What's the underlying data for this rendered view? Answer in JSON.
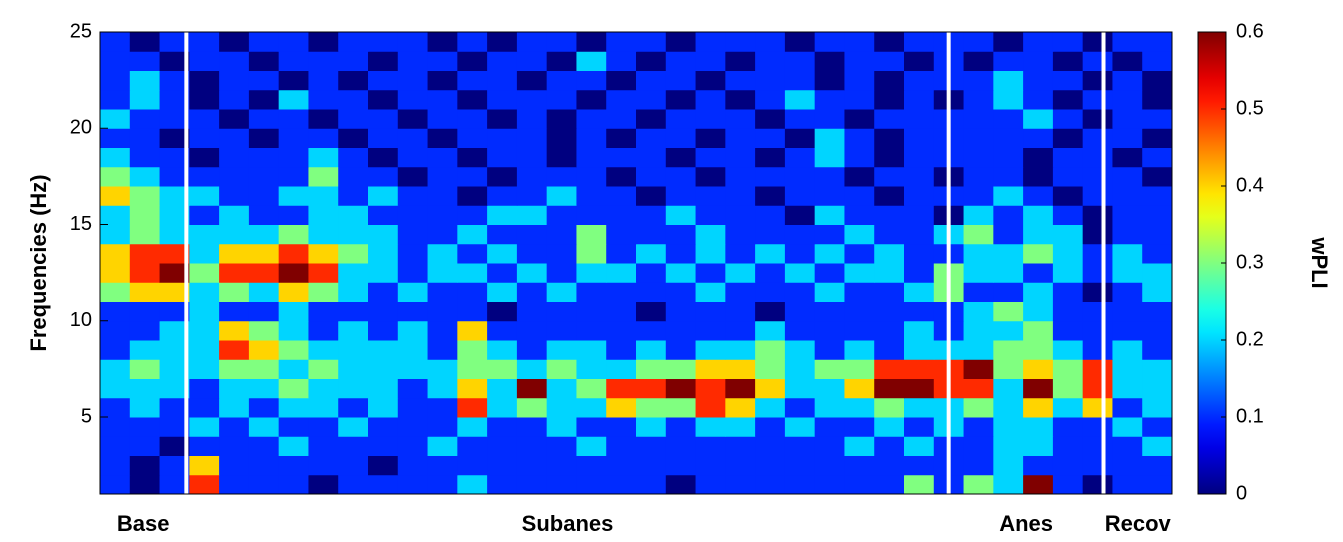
{
  "chart_data": {
    "type": "heatmap",
    "y_label": "Frequencies (Hz)",
    "ylim": [
      1,
      25
    ],
    "yticks": [
      5,
      10,
      15,
      20,
      25
    ],
    "colormap": "jet",
    "colorbar": {
      "label": "wPLI",
      "clim": [
        0,
        0.6
      ],
      "ticks": [
        0,
        0.1,
        0.2,
        0.3,
        0.4,
        0.5,
        0.6
      ]
    },
    "segments": [
      {
        "label": "Base",
        "start": 0
      },
      {
        "label": "Subanes",
        "start": 2.9
      },
      {
        "label": "Anes",
        "start": 28.5
      },
      {
        "label": "Recov",
        "start": 33.7
      }
    ],
    "boundary_color": "#ffffff",
    "values": [
      [
        0.1,
        0.0,
        0.1,
        0.5,
        0.1,
        0.1,
        0.1,
        0.0,
        0.1,
        0.1,
        0.1,
        0.1,
        0.2,
        0.1,
        0.1,
        0.1,
        0.1,
        0.1,
        0.1,
        0.0,
        0.1,
        0.1,
        0.1,
        0.1,
        0.1,
        0.1,
        0.1,
        0.3,
        0.1,
        0.3,
        0.2,
        0.6,
        0.1,
        0.0,
        0.1,
        0.1
      ],
      [
        0.1,
        0.0,
        0.1,
        0.4,
        0.1,
        0.1,
        0.1,
        0.1,
        0.1,
        0.0,
        0.1,
        0.1,
        0.1,
        0.1,
        0.1,
        0.1,
        0.1,
        0.1,
        0.1,
        0.1,
        0.1,
        0.1,
        0.1,
        0.1,
        0.1,
        0.1,
        0.1,
        0.1,
        0.1,
        0.1,
        0.2,
        0.1,
        0.1,
        0.1,
        0.1,
        0.1
      ],
      [
        0.1,
        0.1,
        0.0,
        0.1,
        0.1,
        0.1,
        0.2,
        0.1,
        0.1,
        0.1,
        0.1,
        0.2,
        0.1,
        0.1,
        0.1,
        0.1,
        0.2,
        0.1,
        0.1,
        0.1,
        0.1,
        0.1,
        0.1,
        0.1,
        0.1,
        0.2,
        0.1,
        0.2,
        0.1,
        0.1,
        0.2,
        0.2,
        0.1,
        0.1,
        0.1,
        0.2
      ],
      [
        0.1,
        0.1,
        0.1,
        0.2,
        0.1,
        0.2,
        0.1,
        0.1,
        0.2,
        0.1,
        0.1,
        0.1,
        0.2,
        0.1,
        0.1,
        0.2,
        0.1,
        0.1,
        0.2,
        0.1,
        0.2,
        0.2,
        0.1,
        0.2,
        0.1,
        0.1,
        0.2,
        0.1,
        0.2,
        0.1,
        0.2,
        0.2,
        0.1,
        0.1,
        0.2,
        0.1
      ],
      [
        0.1,
        0.2,
        0.1,
        0.1,
        0.2,
        0.1,
        0.2,
        0.2,
        0.1,
        0.2,
        0.1,
        0.1,
        0.5,
        0.2,
        0.3,
        0.2,
        0.2,
        0.4,
        0.3,
        0.3,
        0.5,
        0.4,
        0.2,
        0.1,
        0.2,
        0.2,
        0.3,
        0.2,
        0.2,
        0.3,
        0.2,
        0.4,
        0.2,
        0.4,
        0.1,
        0.2
      ],
      [
        0.2,
        0.2,
        0.2,
        0.1,
        0.2,
        0.2,
        0.3,
        0.2,
        0.2,
        0.2,
        0.1,
        0.2,
        0.4,
        0.2,
        0.6,
        0.2,
        0.3,
        0.5,
        0.5,
        0.6,
        0.5,
        0.6,
        0.4,
        0.2,
        0.2,
        0.4,
        0.6,
        0.6,
        0.5,
        0.5,
        0.2,
        0.6,
        0.3,
        0.5,
        0.2,
        0.2
      ],
      [
        0.2,
        0.3,
        0.2,
        0.2,
        0.3,
        0.3,
        0.2,
        0.3,
        0.2,
        0.2,
        0.2,
        0.2,
        0.3,
        0.3,
        0.2,
        0.3,
        0.2,
        0.2,
        0.3,
        0.3,
        0.4,
        0.4,
        0.3,
        0.2,
        0.3,
        0.3,
        0.5,
        0.5,
        0.5,
        0.6,
        0.3,
        0.4,
        0.3,
        0.5,
        0.2,
        0.2
      ],
      [
        0.1,
        0.2,
        0.2,
        0.2,
        0.5,
        0.4,
        0.3,
        0.2,
        0.2,
        0.2,
        0.2,
        0.1,
        0.3,
        0.2,
        0.1,
        0.2,
        0.2,
        0.1,
        0.2,
        0.1,
        0.2,
        0.2,
        0.3,
        0.2,
        0.1,
        0.2,
        0.1,
        0.2,
        0.2,
        0.2,
        0.3,
        0.3,
        0.2,
        0.1,
        0.2,
        0.1
      ],
      [
        0.1,
        0.1,
        0.2,
        0.2,
        0.4,
        0.3,
        0.2,
        0.1,
        0.2,
        0.1,
        0.2,
        0.1,
        0.4,
        0.1,
        0.1,
        0.1,
        0.1,
        0.1,
        0.1,
        0.1,
        0.1,
        0.1,
        0.2,
        0.1,
        0.1,
        0.1,
        0.1,
        0.2,
        0.1,
        0.2,
        0.2,
        0.3,
        0.1,
        0.1,
        0.1,
        0.1
      ],
      [
        0.1,
        0.1,
        0.1,
        0.2,
        0.1,
        0.1,
        0.2,
        0.1,
        0.1,
        0.1,
        0.1,
        0.1,
        0.1,
        0.0,
        0.1,
        0.1,
        0.1,
        0.1,
        0.0,
        0.1,
        0.1,
        0.1,
        0.0,
        0.1,
        0.1,
        0.1,
        0.1,
        0.1,
        0.1,
        0.2,
        0.3,
        0.2,
        0.1,
        0.1,
        0.1,
        0.1
      ],
      [
        0.3,
        0.4,
        0.4,
        0.2,
        0.3,
        0.2,
        0.4,
        0.3,
        0.2,
        0.1,
        0.2,
        0.1,
        0.1,
        0.2,
        0.1,
        0.2,
        0.1,
        0.1,
        0.1,
        0.1,
        0.2,
        0.1,
        0.1,
        0.1,
        0.2,
        0.1,
        0.1,
        0.2,
        0.3,
        0.1,
        0.1,
        0.2,
        0.1,
        0.0,
        0.1,
        0.2
      ],
      [
        0.4,
        0.5,
        0.6,
        0.3,
        0.5,
        0.5,
        0.6,
        0.5,
        0.2,
        0.2,
        0.1,
        0.2,
        0.2,
        0.1,
        0.2,
        0.1,
        0.2,
        0.2,
        0.1,
        0.2,
        0.1,
        0.2,
        0.1,
        0.2,
        0.1,
        0.2,
        0.2,
        0.1,
        0.3,
        0.2,
        0.2,
        0.1,
        0.2,
        0.1,
        0.2,
        0.2
      ],
      [
        0.4,
        0.5,
        0.5,
        0.2,
        0.4,
        0.4,
        0.5,
        0.4,
        0.3,
        0.2,
        0.1,
        0.2,
        0.1,
        0.2,
        0.1,
        0.1,
        0.3,
        0.1,
        0.2,
        0.1,
        0.2,
        0.1,
        0.2,
        0.1,
        0.2,
        0.1,
        0.2,
        0.1,
        0.1,
        0.2,
        0.2,
        0.3,
        0.2,
        0.1,
        0.2,
        0.1
      ],
      [
        0.2,
        0.3,
        0.2,
        0.2,
        0.2,
        0.2,
        0.3,
        0.2,
        0.2,
        0.2,
        0.1,
        0.1,
        0.2,
        0.1,
        0.1,
        0.1,
        0.3,
        0.1,
        0.1,
        0.1,
        0.2,
        0.1,
        0.1,
        0.1,
        0.1,
        0.2,
        0.1,
        0.1,
        0.2,
        0.3,
        0.1,
        0.2,
        0.2,
        0.0,
        0.1,
        0.1
      ],
      [
        0.2,
        0.3,
        0.2,
        0.1,
        0.2,
        0.1,
        0.1,
        0.2,
        0.2,
        0.1,
        0.1,
        0.1,
        0.1,
        0.2,
        0.2,
        0.1,
        0.1,
        0.1,
        0.1,
        0.2,
        0.1,
        0.1,
        0.1,
        0.0,
        0.2,
        0.1,
        0.1,
        0.1,
        0.0,
        0.2,
        0.1,
        0.2,
        0.1,
        0.0,
        0.1,
        0.1
      ],
      [
        0.4,
        0.3,
        0.2,
        0.2,
        0.1,
        0.1,
        0.2,
        0.2,
        0.1,
        0.2,
        0.1,
        0.1,
        0.0,
        0.1,
        0.1,
        0.2,
        0.1,
        0.1,
        0.0,
        0.1,
        0.1,
        0.1,
        0.0,
        0.1,
        0.1,
        0.1,
        0.0,
        0.1,
        0.1,
        0.1,
        0.2,
        0.1,
        0.0,
        0.1,
        0.1,
        0.1
      ],
      [
        0.3,
        0.2,
        0.1,
        0.1,
        0.1,
        0.1,
        0.1,
        0.3,
        0.1,
        0.1,
        0.0,
        0.1,
        0.1,
        0.0,
        0.1,
        0.1,
        0.1,
        0.0,
        0.1,
        0.1,
        0.0,
        0.1,
        0.1,
        0.1,
        0.1,
        0.0,
        0.1,
        0.1,
        0.0,
        0.1,
        0.1,
        0.0,
        0.1,
        0.1,
        0.1,
        0.0
      ],
      [
        0.2,
        0.1,
        0.1,
        0.0,
        0.1,
        0.1,
        0.1,
        0.2,
        0.1,
        0.0,
        0.1,
        0.1,
        0.0,
        0.1,
        0.1,
        0.0,
        0.1,
        0.1,
        0.1,
        0.0,
        0.1,
        0.1,
        0.0,
        0.1,
        0.2,
        0.1,
        0.0,
        0.1,
        0.1,
        0.1,
        0.1,
        0.0,
        0.1,
        0.1,
        0.0,
        0.1
      ],
      [
        0.1,
        0.1,
        0.0,
        0.1,
        0.1,
        0.0,
        0.1,
        0.1,
        0.0,
        0.1,
        0.1,
        0.0,
        0.1,
        0.1,
        0.1,
        0.0,
        0.1,
        0.0,
        0.1,
        0.1,
        0.0,
        0.1,
        0.1,
        0.0,
        0.2,
        0.1,
        0.0,
        0.1,
        0.1,
        0.1,
        0.1,
        0.1,
        0.0,
        0.1,
        0.1,
        0.0
      ],
      [
        0.2,
        0.1,
        0.1,
        0.1,
        0.0,
        0.1,
        0.1,
        0.0,
        0.1,
        0.1,
        0.0,
        0.1,
        0.1,
        0.0,
        0.1,
        0.0,
        0.1,
        0.1,
        0.0,
        0.1,
        0.1,
        0.1,
        0.0,
        0.1,
        0.1,
        0.0,
        0.1,
        0.1,
        0.1,
        0.1,
        0.1,
        0.2,
        0.1,
        0.0,
        0.1,
        0.1
      ],
      [
        0.1,
        0.2,
        0.1,
        0.0,
        0.1,
        0.0,
        0.2,
        0.1,
        0.1,
        0.0,
        0.1,
        0.1,
        0.0,
        0.1,
        0.1,
        0.1,
        0.0,
        0.1,
        0.1,
        0.0,
        0.1,
        0.0,
        0.1,
        0.2,
        0.1,
        0.1,
        0.0,
        0.1,
        0.0,
        0.1,
        0.2,
        0.1,
        0.0,
        0.1,
        0.1,
        0.0
      ],
      [
        0.1,
        0.2,
        0.1,
        0.0,
        0.1,
        0.1,
        0.0,
        0.1,
        0.0,
        0.1,
        0.1,
        0.0,
        0.1,
        0.1,
        0.0,
        0.1,
        0.1,
        0.0,
        0.1,
        0.1,
        0.0,
        0.1,
        0.1,
        0.1,
        0.0,
        0.1,
        0.0,
        0.1,
        0.1,
        0.1,
        0.2,
        0.1,
        0.1,
        0.0,
        0.1,
        0.0
      ],
      [
        0.1,
        0.1,
        0.0,
        0.1,
        0.1,
        0.0,
        0.1,
        0.1,
        0.1,
        0.0,
        0.1,
        0.1,
        0.0,
        0.1,
        0.1,
        0.0,
        0.2,
        0.1,
        0.0,
        0.1,
        0.1,
        0.0,
        0.1,
        0.1,
        0.0,
        0.1,
        0.1,
        0.0,
        0.1,
        0.0,
        0.1,
        0.1,
        0.0,
        0.1,
        0.0,
        0.1
      ],
      [
        0.1,
        0.0,
        0.1,
        0.1,
        0.0,
        0.1,
        0.1,
        0.0,
        0.1,
        0.1,
        0.1,
        0.0,
        0.1,
        0.0,
        0.1,
        0.1,
        0.0,
        0.1,
        0.1,
        0.0,
        0.1,
        0.1,
        0.1,
        0.0,
        0.1,
        0.1,
        0.0,
        0.1,
        0.1,
        0.1,
        0.0,
        0.1,
        0.1,
        0.0,
        0.1,
        0.1
      ]
    ]
  }
}
